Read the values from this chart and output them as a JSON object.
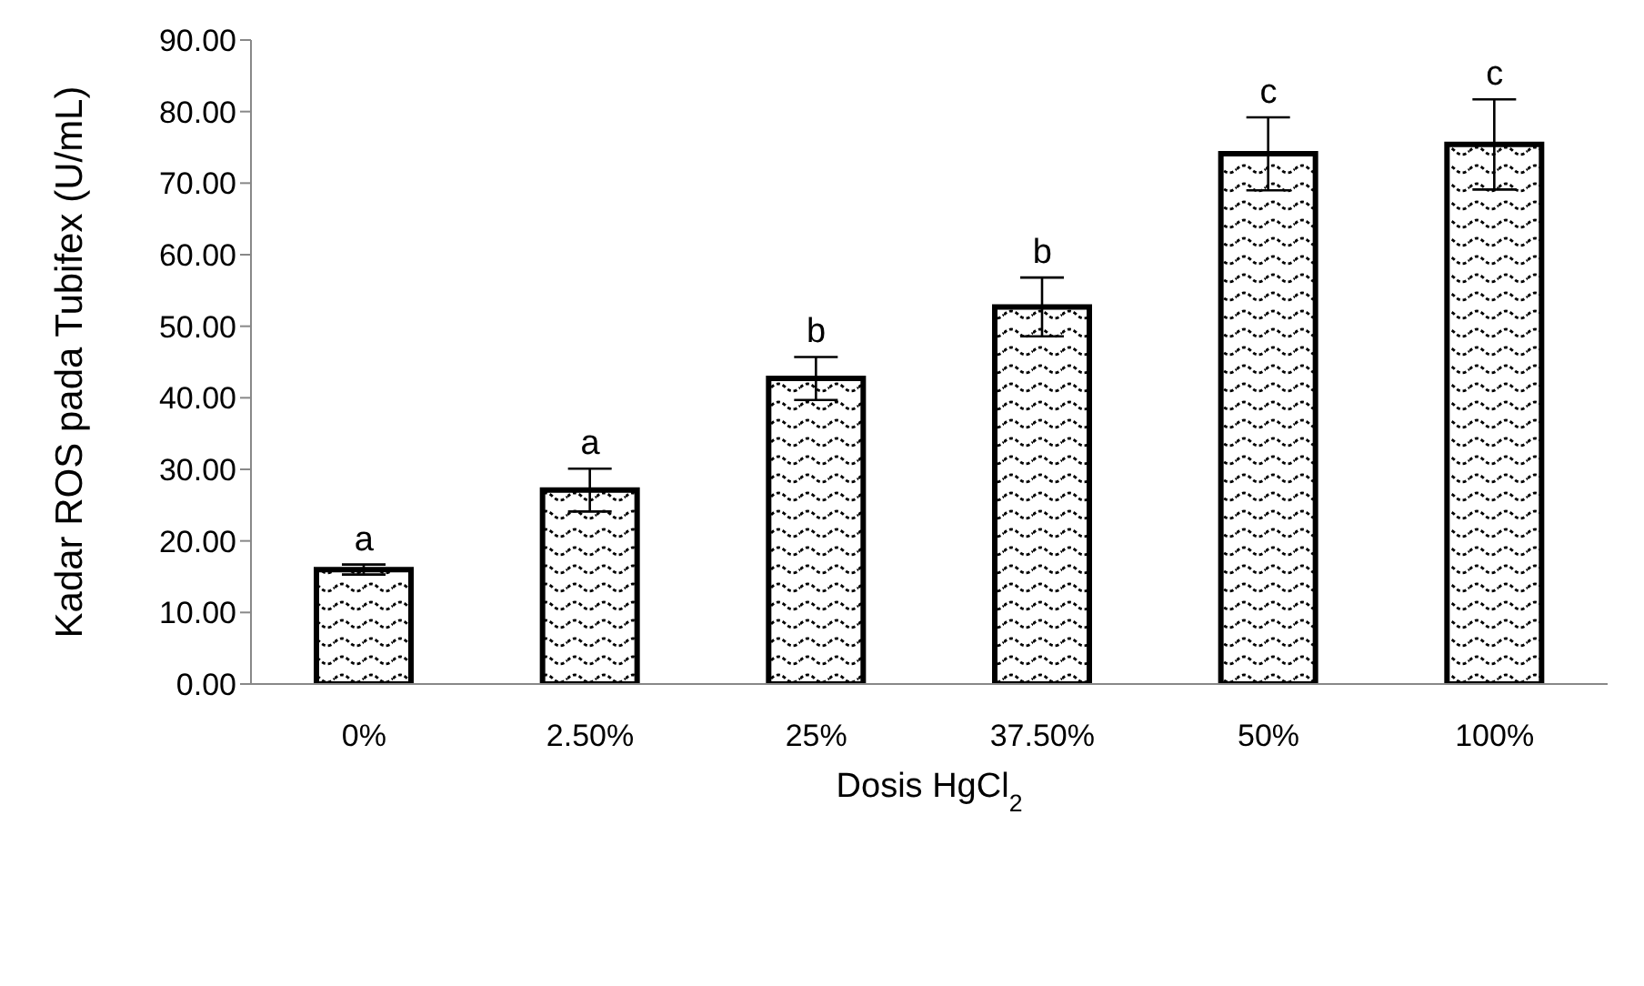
{
  "chart_data": {
    "type": "bar",
    "xlabel": "Dosis HgCl$_{2}$",
    "ylabel": "Kadar ROS pada Tubifex (U/mL)",
    "categories": [
      "0%",
      "2.50%",
      "25%",
      "37.50%",
      "50%",
      "100%"
    ],
    "values": [
      16.0,
      27.1,
      42.7,
      52.7,
      74.1,
      75.4
    ],
    "errors": [
      0.7,
      3.0,
      3.0,
      4.1,
      5.1,
      6.3
    ],
    "color": "#000000",
    "ylim": [
      0,
      90
    ],
    "yticks": [
      {
        "value": 0,
        "label": "0.00"
      },
      {
        "value": 10,
        "label": "10.00"
      },
      {
        "value": 20,
        "label": "20.00"
      },
      {
        "value": 30,
        "label": "30.00"
      },
      {
        "value": 40,
        "label": "40.00"
      },
      {
        "value": 50,
        "label": "50.00"
      },
      {
        "value": 60,
        "label": "60.00"
      },
      {
        "value": 70,
        "label": "70.00"
      },
      {
        "value": 80,
        "label": "80.00"
      },
      {
        "value": 90,
        "label": "90.00"
      }
    ],
    "grid": false,
    "legend": false,
    "annotations": [
      {
        "text": "a",
        "x": "0%",
        "y": 16.7
      },
      {
        "text": "a",
        "x": "2.50%",
        "y": 30.1
      },
      {
        "text": "b",
        "x": "25%",
        "y": 45.7
      },
      {
        "text": "b",
        "x": "37.50%",
        "y": 56.8
      },
      {
        "text": "c",
        "x": "50%",
        "y": 79.2
      },
      {
        "text": "c",
        "x": "100%",
        "y": 81.7
      }
    ]
  }
}
